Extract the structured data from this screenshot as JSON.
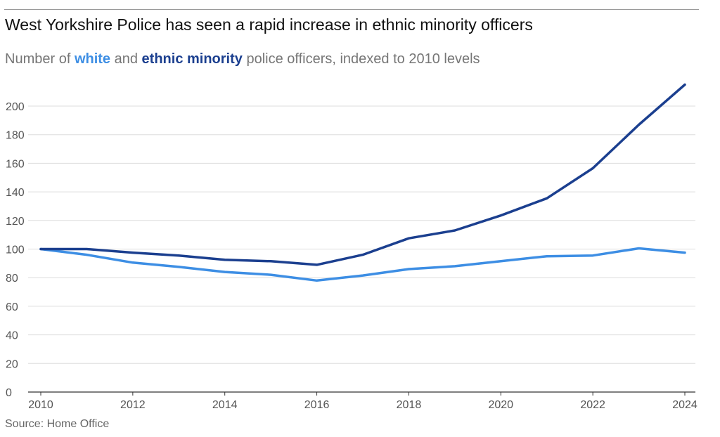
{
  "chart_data": {
    "type": "line",
    "title": "West Yorkshire Police has seen a rapid increase in ethnic minority officers",
    "subtitle": {
      "prefix": "Number of ",
      "white_label": "white",
      "middle": " and ",
      "minority_label": "ethnic minority",
      "suffix": " police officers, indexed to 2010 levels"
    },
    "source": "Source: Home Office",
    "x": [
      2010,
      2011,
      2012,
      2013,
      2014,
      2015,
      2016,
      2017,
      2018,
      2019,
      2020,
      2021,
      2022,
      2023,
      2024
    ],
    "x_ticks": [
      "2010",
      "2012",
      "2014",
      "2016",
      "2018",
      "2020",
      "2022",
      "2024"
    ],
    "y_ticks": [
      "0",
      "20",
      "40",
      "60",
      "80",
      "100",
      "120",
      "140",
      "160",
      "180",
      "200"
    ],
    "xlim": [
      2010,
      2024
    ],
    "ylim": [
      0,
      215
    ],
    "grid": true,
    "series": [
      {
        "name": "white",
        "color": "#3d8ee4",
        "values": [
          100,
          96,
          90.5,
          87.5,
          84,
          82,
          78,
          81.5,
          86,
          88,
          91.5,
          95,
          95.5,
          100.5,
          97.5
        ]
      },
      {
        "name": "ethnic minority",
        "color": "#1b3f8f",
        "values": [
          100,
          100,
          97.5,
          95.5,
          92.5,
          91.5,
          89,
          96,
          107.5,
          113,
          123.5,
          135.5,
          156.5,
          187,
          215
        ]
      }
    ]
  }
}
